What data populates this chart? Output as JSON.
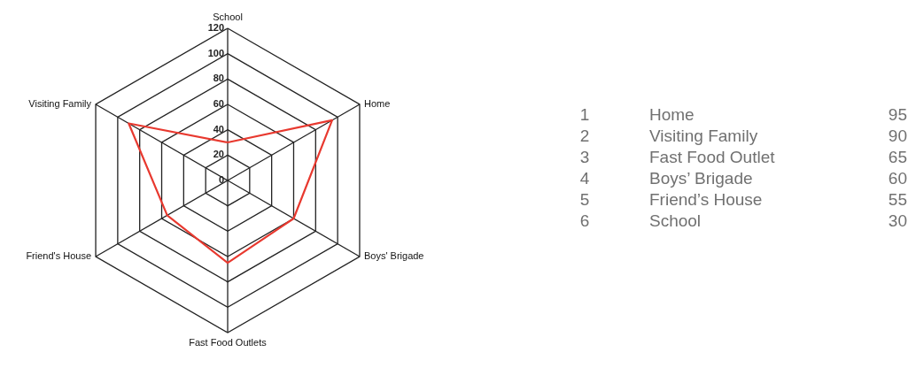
{
  "chart_data": {
    "type": "radar",
    "categories": [
      "School",
      "Home",
      "Boys' Brigade",
      "Fast Food Outlets",
      "Friend's House",
      "Visiting Family"
    ],
    "series": [
      {
        "color": "#e8392f",
        "values": [
          30,
          95,
          60,
          65,
          55,
          90
        ]
      }
    ],
    "ylim": [
      0,
      120
    ],
    "yticks": [
      0,
      20,
      40,
      60,
      80,
      100,
      120
    ],
    "grid": true,
    "annotations": [
      "1 Home 95",
      "2 Visiting Family 90",
      "3 Fast Food Outlet 65",
      "4 Boys’ Brigade 60",
      "5 Friend’s House 55",
      "6 School 30"
    ]
  }
}
